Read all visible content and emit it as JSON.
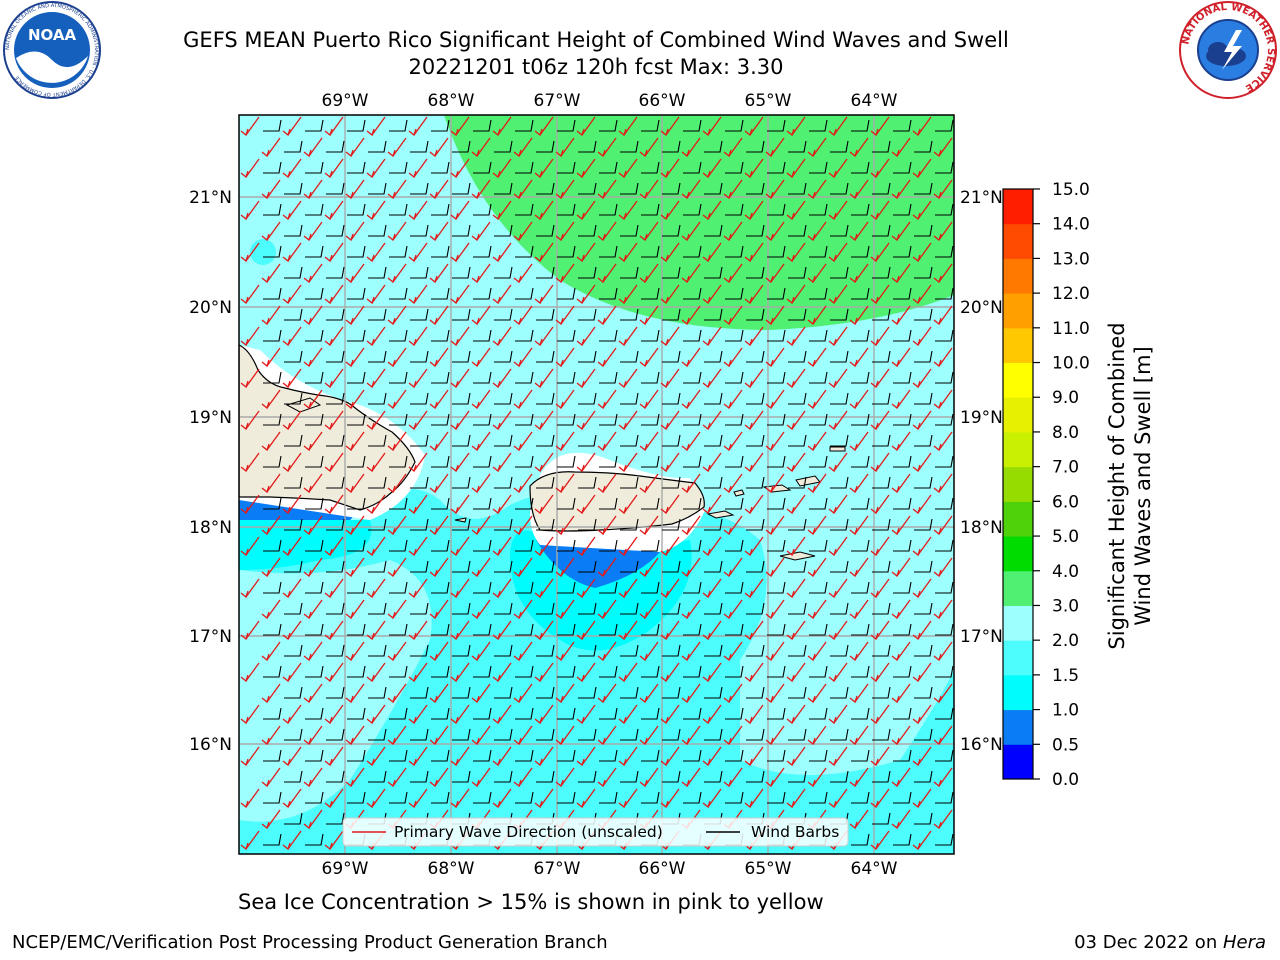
{
  "header": {
    "title_line1": "GEFS MEAN Puerto Rico Significant Height of Combined Wind Waves and Swell",
    "title_line2": "20221201 t06z 120h fcst   Max: 3.30"
  },
  "logos": {
    "noaa_text": "NOAA",
    "noaa_ring_text": "NATIONAL OCEANIC AND ATMOSPHERIC ADMINISTRATION · U.S. DEPARTMENT OF COMMERCE",
    "nws_ring_text": "NATIONAL WEATHER SERVICE"
  },
  "map": {
    "lon_labels": [
      "69°W",
      "68°W",
      "67°W",
      "66°W",
      "65°W",
      "64°W"
    ],
    "lat_labels": [
      "16°N",
      "17°N",
      "18°N",
      "19°N",
      "20°N",
      "21°N"
    ],
    "legend": {
      "primary_wave": "Primary Wave Direction (unscaled)",
      "wind_barbs": "Wind Barbs"
    },
    "colors": {
      "land": "#efecdc",
      "wave_2_3": "#9effff",
      "wave_3_4": "#50f073",
      "wave_1_5_2": "#4dfcfc",
      "wave_1_1_5": "#00fcfc",
      "wave_0_5_1": "#0a7cf5",
      "arrow": "#e31a1a",
      "barb": "#000000"
    }
  },
  "colorbar": {
    "label_line1": "Significant Height of Combined",
    "label_line2": "Wind Waves and Swell [m]",
    "ticks": [
      "0.0",
      "0.5",
      "1.0",
      "1.5",
      "2.0",
      "3.0",
      "4.0",
      "5.0",
      "6.0",
      "7.0",
      "8.0",
      "9.0",
      "10.0",
      "11.0",
      "12.0",
      "13.0",
      "14.0",
      "15.0"
    ],
    "colors": [
      "#0000ff",
      "#0a7cf5",
      "#00fcfc",
      "#4dfcfc",
      "#9effff",
      "#50f073",
      "#00dc00",
      "#50d20a",
      "#96dc00",
      "#c8f000",
      "#e6f000",
      "#ffff00",
      "#ffc800",
      "#ffa000",
      "#ff7800",
      "#ff4b00",
      "#ff1e00"
    ]
  },
  "notes": {
    "sea_ice": "Sea Ice Concentration > 15% is shown in pink to yellow"
  },
  "footer": {
    "left": "NCEP/EMC/Verification Post Processing Product Generation Branch",
    "right_prefix": "03 Dec 2022 on ",
    "right_machine": "Hera"
  }
}
